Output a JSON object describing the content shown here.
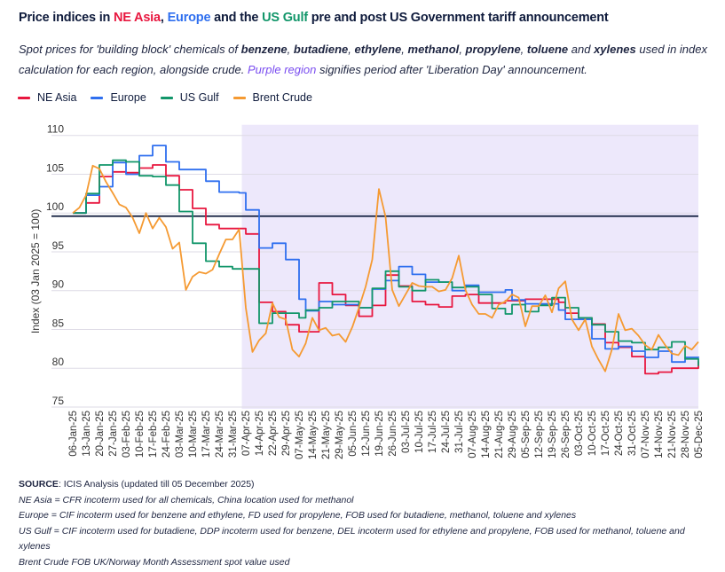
{
  "title": {
    "prefix": "Price indices in ",
    "ne_asia": "NE Asia",
    "sep1": ", ",
    "europe": "Europe",
    "and_the": " and the ",
    "us_gulf": "US Gulf",
    "suffix": " pre and post US Government tariff announcement"
  },
  "subtitle": {
    "t1": "Spot prices for 'building block' chemicals of ",
    "c1": "benzene",
    "s1": ", ",
    "c2": "butadiene",
    "s2": ", ",
    "c3": "ethylene",
    "s3": ", ",
    "c4": "methanol",
    "s4": ", ",
    "c5": "propylene",
    "s5": ", ",
    "c6": "toluene",
    "s6": " and ",
    "c7": "xylenes",
    "t2": " used in index calculation for each region, alongside crude. ",
    "purple": "Purple region",
    "t3": " signifies period after 'Liberation Day' announcement."
  },
  "footer": {
    "source_label": "SOURCE",
    "source_text": ": ICIS Analysis (updated till 05 December 2025)",
    "notes": [
      "NE Asia = CFR incoterm used for all chemicals, China location used for methanol",
      "Europe = CIF incoterm used for benzene and ethylene, FD used for propylene, FOB used for butadiene, methanol, toluene and xylenes",
      "US Gulf = CIF incoterm used for butadiene, DDP incoterm used for benzene, DEL incoterm used for ethylene and propylene, FOB used for methanol, toluene and xylenes",
      "Brent Crude FOB UK/Norway Month Assessment spot value used"
    ]
  },
  "colors": {
    "ne_asia": "#e8173f",
    "europe": "#2f6fef",
    "us_gulf": "#12966a",
    "brent": "#f59a32",
    "purple_text": "#7a4df0",
    "shading": "#ede8fb",
    "baseline": "#0f1b3c",
    "grid": "#dedbe6",
    "text": "#0f1b3c"
  },
  "chart_data": {
    "type": "line",
    "ylabel": "Index (03 Jan 2025 = 100)",
    "ylim": [
      75,
      110
    ],
    "yticks": [
      75,
      80,
      85,
      90,
      95,
      100,
      105,
      110
    ],
    "grid": true,
    "legend_position": "top-left",
    "reference_line": 99.6,
    "shaded_region": {
      "from": "03-Apr",
      "to": "05-Dec"
    },
    "x_ticks": [
      "06-Jan-25",
      "13-Jan-25",
      "20-Jan-25",
      "27-Jan-25",
      "03-Feb-25",
      "10-Feb-25",
      "17-Feb-25",
      "24-Feb-25",
      "03-Mar-25",
      "10-Mar-25",
      "17-Mar-25",
      "24-Mar-25",
      "31-Mar-25",
      "07-Apr-25",
      "14-Apr-25",
      "22-Apr-25",
      "29-Apr-25",
      "07-May-25",
      "14-May-25",
      "21-May-25",
      "29-May-25",
      "05-Jun-25",
      "12-Jun-25",
      "19-Jun-25",
      "26-Jun-25",
      "03-Jul-25",
      "10-Jul-25",
      "17-Jul-25",
      "24-Jul-25",
      "31-Jul-25",
      "07-Aug-25",
      "14-Aug-25",
      "21-Aug-25",
      "29-Aug-25",
      "05-Sep-25",
      "12-Sep-25",
      "19-Sep-25",
      "26-Sep-25",
      "03-Oct-25",
      "10-Oct-25",
      "17-Oct-25",
      "24-Oct-25",
      "31-Oct-25",
      "07-Nov-25",
      "14-Nov-25",
      "21-Nov-25",
      "28-Nov-25",
      "05-Dec-25"
    ],
    "x": [
      "06-Jan",
      "09-Jan",
      "13-Jan",
      "16-Jan",
      "20-Jan",
      "23-Jan",
      "27-Jan",
      "30-Jan",
      "03-Feb",
      "06-Feb",
      "10-Feb",
      "13-Feb",
      "17-Feb",
      "20-Feb",
      "24-Feb",
      "27-Feb",
      "03-Mar",
      "06-Mar",
      "10-Mar",
      "13-Mar",
      "17-Mar",
      "20-Mar",
      "24-Mar",
      "27-Mar",
      "31-Mar",
      "03-Apr",
      "07-Apr",
      "10-Apr",
      "14-Apr",
      "17-Apr",
      "22-Apr",
      "25-Apr",
      "29-Apr",
      "02-May",
      "07-May",
      "09-May",
      "14-May",
      "16-May",
      "21-May",
      "23-May",
      "29-May",
      "02-Jun",
      "05-Jun",
      "09-Jun",
      "12-Jun",
      "16-Jun",
      "19-Jun",
      "23-Jun",
      "26-Jun",
      "30-Jun",
      "03-Jul",
      "07-Jul",
      "10-Jul",
      "14-Jul",
      "17-Jul",
      "21-Jul",
      "24-Jul",
      "28-Jul",
      "31-Jul",
      "04-Aug",
      "07-Aug",
      "11-Aug",
      "14-Aug",
      "18-Aug",
      "21-Aug",
      "26-Aug",
      "29-Aug",
      "02-Sep",
      "05-Sep",
      "09-Sep",
      "12-Sep",
      "16-Sep",
      "19-Sep",
      "23-Sep",
      "26-Sep",
      "30-Sep",
      "03-Oct",
      "07-Oct",
      "10-Oct",
      "14-Oct",
      "17-Oct",
      "21-Oct",
      "24-Oct",
      "28-Oct",
      "31-Oct",
      "04-Nov",
      "07-Nov",
      "11-Nov",
      "14-Nov",
      "18-Nov",
      "21-Nov",
      "25-Nov",
      "28-Nov",
      "02-Dec",
      "05-Dec"
    ],
    "series": [
      {
        "name": "NE Asia",
        "color_key": "ne_asia",
        "style": "step",
        "values": [
          100,
          100,
          101.3,
          101.3,
          104.7,
          104.7,
          105.3,
          105.3,
          105.2,
          105.2,
          105.8,
          105.8,
          106.2,
          106.2,
          104.8,
          104.8,
          103,
          103,
          100.6,
          100.6,
          98.5,
          98.5,
          98,
          98,
          98,
          98,
          97.3,
          97.3,
          88.5,
          88.5,
          87.3,
          87.3,
          85.6,
          85.6,
          84.7,
          84.7,
          84.7,
          91,
          91,
          89.5,
          89.5,
          88.1,
          88.1,
          86.7,
          86.7,
          88.1,
          88.1,
          92,
          92,
          90.6,
          90.6,
          88.6,
          88.6,
          88.2,
          88.2,
          87.9,
          87.9,
          89.3,
          89.3,
          89.5,
          89.5,
          88.4,
          88.4,
          88.4,
          88.4,
          88.7,
          88.7,
          88.7,
          88.9,
          88.9,
          88.9,
          88.9,
          88.9,
          88.5,
          87.1,
          87.1,
          86.5,
          86.5,
          85.7,
          85.7,
          83.3,
          83.3,
          82.7,
          82.7,
          81.5,
          81.5,
          79.3,
          79.3,
          79.5,
          79.5,
          80,
          80,
          80,
          80,
          80.9
        ]
      },
      {
        "name": "Europe",
        "color_key": "europe",
        "style": "step",
        "values": [
          100,
          100,
          102.3,
          102.3,
          103.4,
          103.4,
          106.5,
          106.5,
          105,
          105,
          107.4,
          107.4,
          108.7,
          108.7,
          106.6,
          106.6,
          105.6,
          105.6,
          105.6,
          105.6,
          104.1,
          104.1,
          102.7,
          102.7,
          102.7,
          102.6,
          100.4,
          100.4,
          95.5,
          95.5,
          96.1,
          96.1,
          94,
          94,
          88.9,
          87.4,
          87.4,
          88.6,
          88.6,
          88.2,
          88.2,
          88.2,
          88.2,
          87.8,
          87.8,
          90.2,
          90.2,
          91.3,
          91.3,
          93.1,
          93.1,
          92.1,
          92.1,
          91.1,
          91.1,
          91.1,
          91.1,
          90,
          90,
          90.7,
          90.7,
          89.8,
          89.8,
          89.8,
          89.8,
          90.1,
          88.8,
          88.8,
          88.3,
          88.3,
          88.3,
          88.3,
          88.3,
          87.5,
          86.3,
          86.3,
          86.3,
          86.3,
          83.8,
          83.8,
          82.5,
          82.5,
          82.8,
          82.8,
          82.2,
          82.2,
          81.4,
          81.4,
          82.2,
          82.2,
          80.8,
          80.8,
          81.4,
          81.4,
          81.5
        ]
      },
      {
        "name": "US Gulf",
        "color_key": "us_gulf",
        "style": "step",
        "values": [
          100,
          100,
          102.5,
          102.5,
          106.2,
          106.2,
          106.8,
          106.8,
          106.6,
          106.6,
          104.8,
          104.8,
          104.7,
          104.7,
          103.6,
          103.6,
          100.2,
          100.2,
          96.1,
          96.1,
          93.8,
          93.8,
          93.1,
          93.1,
          92.8,
          92.8,
          92.8,
          92.8,
          85.8,
          85.8,
          87.1,
          87.1,
          87.1,
          87.1,
          86.5,
          87.5,
          87.5,
          87.8,
          87.8,
          88.6,
          88.6,
          88.6,
          88.6,
          87.8,
          87.8,
          90.3,
          90.3,
          92.5,
          92.5,
          90.5,
          90.5,
          90,
          90,
          91.4,
          91.4,
          91.1,
          91.1,
          90.4,
          90.4,
          90.5,
          90.5,
          89.5,
          89.5,
          87.7,
          87.7,
          87,
          88.2,
          88.2,
          87.3,
          87.3,
          88.1,
          88.1,
          89.1,
          89.1,
          87.8,
          87.8,
          86.5,
          86.5,
          85.6,
          85.6,
          84.7,
          84.7,
          83.5,
          83.5,
          83.3,
          83.3,
          82.4,
          82.4,
          82.7,
          82.7,
          83.4,
          83.4,
          81.2,
          81.2,
          80.3
        ]
      },
      {
        "name": "Brent Crude",
        "color_key": "brent",
        "style": "line",
        "values": [
          100,
          100.7,
          102.3,
          106.1,
          105.7,
          104,
          102.6,
          101.1,
          100.7,
          99.4,
          97.4,
          100,
          98,
          99.4,
          98.2,
          95.4,
          96.2,
          90.1,
          91.8,
          92.4,
          92.2,
          92.7,
          94.7,
          96.6,
          96.6,
          97.9,
          87.8,
          82.1,
          83.6,
          84.5,
          88.4,
          86.6,
          86.3,
          82.4,
          81.5,
          83.2,
          86.5,
          84.9,
          85.2,
          84.2,
          84.4,
          83.4,
          85.3,
          87.8,
          90.5,
          94,
          103.1,
          99.5,
          90.1,
          88,
          89.5,
          91,
          90.6,
          90.5,
          90.5,
          89.9,
          90.1,
          91.6,
          94.5,
          90.1,
          88.2,
          87,
          87,
          86.5,
          88.2,
          88.6,
          89.5,
          89.1,
          85.4,
          88,
          88,
          89.4,
          87.2,
          90.3,
          91.2,
          86.3,
          84.9,
          86.3,
          82.8,
          81.1,
          79.6,
          82.4,
          87,
          84.9,
          85.1,
          84.2,
          83,
          82.4,
          84.3,
          83,
          81.9,
          81.7,
          82.9,
          82.4,
          83.4
        ]
      }
    ]
  }
}
